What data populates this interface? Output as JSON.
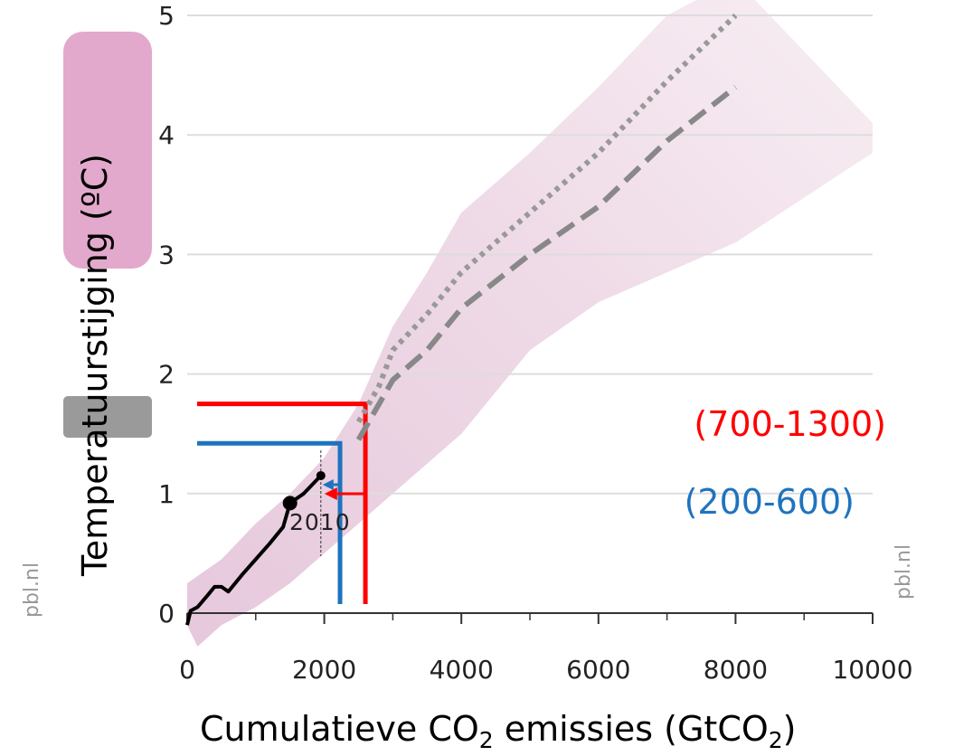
{
  "chart_data": {
    "type": "line",
    "xlabel_main": "Cumulatieve CO",
    "xlabel_sub": "2",
    "xlabel_rest": " emissies (GtCO",
    "xlabel_end": ")",
    "ylabel": "Temperatuurstijging (ºC)",
    "xlim": [
      0,
      10000
    ],
    "ylim": [
      0,
      5
    ],
    "x_ticks": [
      "0",
      "2000",
      "4000",
      "6000",
      "8000",
      "10000"
    ],
    "y_ticks": [
      "0",
      "1",
      "2",
      "3",
      "4",
      "5"
    ],
    "grid": true,
    "series": [
      {
        "style": "solid-black",
        "x": [
          0,
          50,
          150,
          300,
          400,
          500,
          600,
          800,
          1000,
          1200,
          1400,
          1500,
          1700,
          1950
        ],
        "y": [
          -0.1,
          0.02,
          0.05,
          0.15,
          0.22,
          0.22,
          0.18,
          0.32,
          0.45,
          0.58,
          0.72,
          0.92,
          1.0,
          1.15
        ]
      },
      {
        "style": "dotted-gray",
        "x": [
          2500,
          2800,
          3000,
          3500,
          4000,
          5000,
          6000,
          7000,
          8000
        ],
        "y": [
          1.6,
          1.9,
          2.2,
          2.5,
          2.85,
          3.35,
          3.85,
          4.45,
          5.0
        ]
      },
      {
        "style": "dashed-gray",
        "x": [
          2500,
          2800,
          3000,
          3500,
          4000,
          5000,
          6000,
          7000,
          8000
        ],
        "y": [
          1.45,
          1.75,
          1.95,
          2.2,
          2.55,
          3.0,
          3.4,
          3.95,
          4.4
        ]
      }
    ],
    "markers": [
      {
        "x": 1500,
        "y": 0.92,
        "size": "large"
      },
      {
        "x": 1950,
        "y": 1.15,
        "size": "small"
      }
    ],
    "annotations": {
      "year_label": "2010",
      "red_range": "(700-1300)",
      "blue_range": "(200-600)",
      "red_level": {
        "x": 2600,
        "y": 1.75
      },
      "blue_level": {
        "x": 2230,
        "y": 1.42
      },
      "colors": {
        "red": "#ff0000",
        "blue": "#1e73be",
        "band": "#e9d2e1"
      }
    },
    "watermark_left": "pbl.nl",
    "watermark_right": "pbl.nl"
  }
}
